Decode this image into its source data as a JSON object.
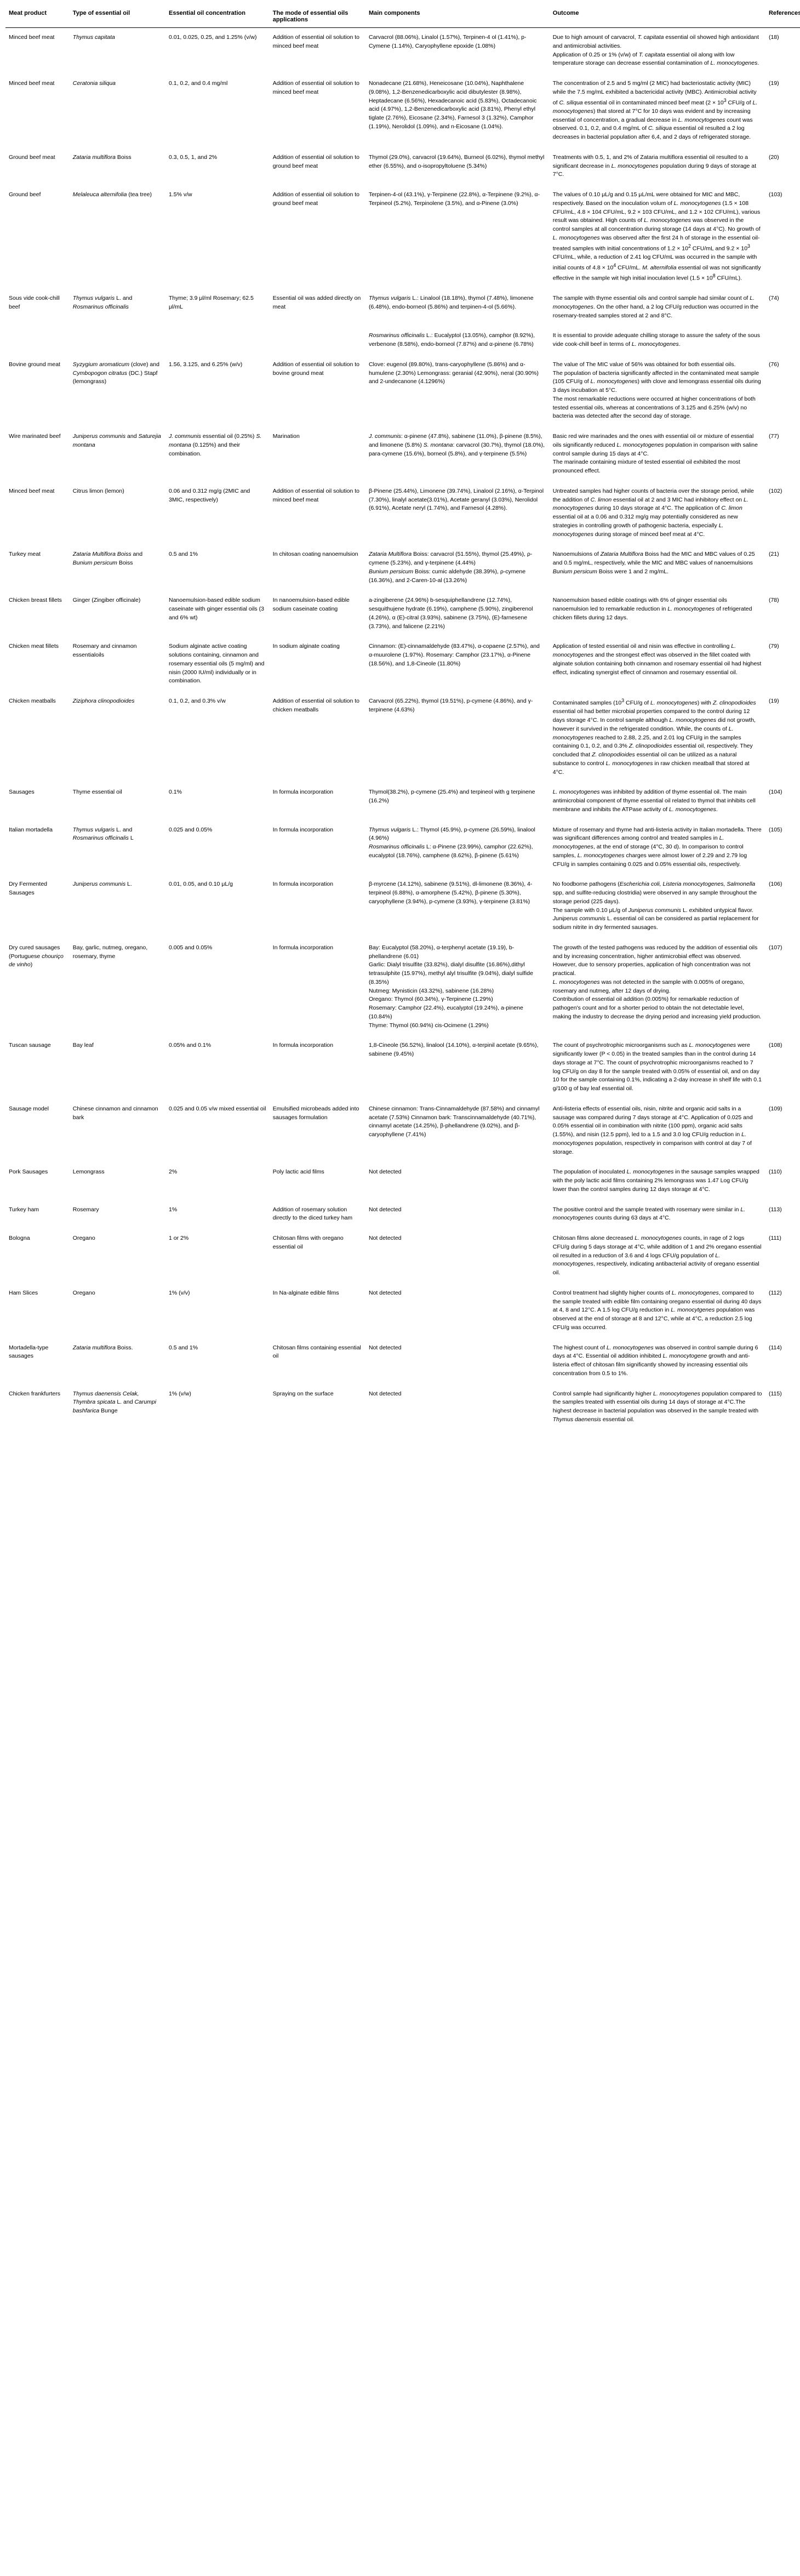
{
  "headers": {
    "meat": "Meat product",
    "type": "Type of essential oil",
    "conc": "Essential oil concentration",
    "mode": "The mode of essential oils applications",
    "main": "Main components",
    "outcome": "Outcome",
    "ref": "References"
  },
  "rows": [
    {
      "meat": "Minced beef meat",
      "type": "<em>Thymus capitata</em>",
      "conc": "0.01, 0.025, 0.25, and 1.25% (v/w)",
      "mode": "Addition of essential oil solution to minced beef meat",
      "main": "Carvacrol (88.06%), Linalol (1.57%), Terpinen-4 ol (1.41%), p-Cymene (1.14%), Caryophyllene epoxide (1.08%)",
      "outcome": "Due to high amount of carvacrol, <em>T. capitata</em> essential oil showed high antioxidant and antimicrobial activities.<br>Application of 0.25 or 1% (v/w) of <em>T. capitata</em> essential oil along with low temperature storage can decrease essential contamination of <em>L. monocytogenes</em>.",
      "ref": "(18)"
    },
    {
      "meat": "Minced beef meat",
      "type": "<em>Ceratonia siliqua</em>",
      "conc": "0.1, 0.2, and 0.4 mg/ml",
      "mode": "Addition of essential oil solution to minced beef meat",
      "main": "Nonadecane (21.68%), Heneicosane (10.04%), Naphthalene (9.08%), 1,2-Benzenedicarboxylic acid dibutylester (8.98%), Heptadecane (6.56%), Hexadecanoic acid (5.83%), Octadecanoic acid (4.97%), 1,2-Benzenedicarboxylic acid (3.81%), Phenyl ethyl tiglate (2.76%), Eicosane (2.34%), Farnesol 3 (1.32%), Camphor (1.19%), Nerolidol (1.09%), and n-Eicosane (1.04%).",
      "outcome": "The concentration of 2.5 and 5 mg/ml (2 MIC) had bacteriostatic activity (MIC) while the 7.5 mg/mL exhibited a bactericidal activity (MBC). Antimicrobial activity of <em>C. siliqua</em> essential oil in contaminated minced beef meat (2 × 10<sup>3</sup> CFU/g of <em>L. monocytogenes</em>) that stored at 7°C for 10 days was evident and by increasing essential of concentration, a gradual decrease in <em>L. monocytogenes</em> count was observed. 0.1, 0.2, and 0.4 mg/mL of <em>C. siliqua</em> essential oil resulted a 2 log decreases in bacterial population after 6,4, and 2 days of refrigerated storage.",
      "ref": "(19)"
    },
    {
      "meat": "Ground beef meat",
      "type": "<em>Zataria multiflora</em> Boiss",
      "conc": "0.3, 0.5, 1, and 2%",
      "mode": "Addition of essential oil solution to ground beef meat",
      "main": "Thymol (29.0%), carvacrol (19.64%), Burneol (6.02%), thymol methyl ether (6.55%), and o-isopropyltoluene (5.34%)",
      "outcome": "Treatments with 0.5, 1, and 2% of Zataria multiflora essential oil resulted to a significant decrease in <em>L. monocytogenes</em> population during 9 days of storage at 7°C.",
      "ref": "(20)"
    },
    {
      "meat": "Ground beef",
      "type": "<em>Melaleuca alternifolia</em> (tea tree)",
      "conc": "1.5% v/w",
      "mode": "Addition of essential oil solution to ground beef meat",
      "main": "Terpinen-4-ol (43.1%), γ-Terpinene (22.8%), α-Terpinene (9.2%), α-Terpineol (5.2%), Terpinolene (3.5%), and α-Pinene (3.0%)",
      "outcome": "The values of 0.10 μL/g and 0.15 μL/mL were obtained for MIC and MBC, respectively. Based on the inoculation volum of <em>L. monocytogenes</em> (1.5 × 108 CFU/mL, 4.8 × 104 CFU/mL, 9.2 × 103 CFU/mL, and 1.2 × 102 CFU/mL), various result was obtained. High counts of <em>L. monocytogenes</em> was observed in the control samples at all concentration during storage (14 days at 4°C). No growth of <em>L. monocytogenes</em> was observed after the first 24 h of storage in the essential oil- treated samples with initial concentrations of 1.2 × 10<sup>2</sup> CFU/mL and 9.2 × 10<sup>3</sup> CFU/mL, while, a reduction of 2.41 log CFU/mL was occurred in the sample with initial counts of 4.8 × 10<sup>4</sup> CFU/mL. <em>M. alternifolia</em> essential oil was not significantly effective in the sample wit high initial inoculation level (1.5 × 10<sup>8</sup> CFU/mL).",
      "ref": "(103)"
    },
    {
      "meat": "Sous vide cook-chill beef",
      "type": "<em>Thymus vulgaris</em> L. and <em>Rosmarinus officinalis</em>",
      "conc": "Thyme; 3.9 μl/ml Rosemary; 62.5 μl/mL",
      "mode": "Essential oil was added directly on meat",
      "main": "<em>Thymus vulgaris</em> L.: Linalool (18.18%), thymol (7.48%), limonene (6.48%), endo-borneol (5.86%) and terpinen-4-ol (5.66%).",
      "outcome": "The sample with thyme essential oils and control sample had similar count of <em>L. monocytogenes</em>. On the other hand, a 2 log CFU/g reduction was occurred in the rosemary-treated samples stored at 2 and 8°C.",
      "ref": "(74)"
    },
    {
      "meat": "",
      "type": "",
      "conc": "",
      "mode": "",
      "main": "<em>Rosmarinus officinalis</em> L.: Eucalyptol (13.05%), camphor (8.92%), verbenone (8.58%), endo-borneol (7.87%) and α-pinene (6.78%)",
      "outcome": "It is essential to provide adequate chilling storage to assure the safety of the sous vide cook-chill beef in terms of <em>L. monocytogenes</em>.",
      "ref": ""
    },
    {
      "meat": "Bovine ground meat",
      "type": "<em>Syzygium aromaticum</em> (clove) and <em>Cymbopogon citratus</em> (DC.) Stapf (lemongrass)",
      "conc": "1.56, 3.125, and 6.25% (w/v)",
      "mode": "Addition of essential oil solution to bovine ground meat",
      "main": "Clove: eugenol (89.80%), trans-caryophyllene (5.86%) and α-humulene (2.30%) Lemongrass: geranial (42.90%), neral (30.90%) and 2-undecanone (4.1296%)",
      "outcome": "The value of The MIC value of 56% was obtained for both essential oils.<br>The population of bacteria significantly affected in the contaminated meat sample (105 CFU/g of <em>L. monocytogenes</em>) with clove and lemongrass essential oils during 3 days incubation at 5°C.<br>The most remarkable reductions were occurred at higher concentrations of both tested essential oils, whereas at concentrations of 3.125 and 6.25% (w/v) no bacteria was detected after the second day of storage.",
      "ref": "(76)"
    },
    {
      "meat": "Wire marinated beef",
      "type": "<em>Juniperus communis</em> and <em>Saturejia montana</em>",
      "conc": "<em>J. communis</em> essential oil (0.25%) <em>S. montana</em> (0.125%) and their combination.",
      "mode": "Marination",
      "main": "<em>J. communis</em>: α-pinene (47.8%), sabinene (11.0%), β-pinene (8.5%), and limonene (5.8%) <em>S. montana</em>: carvacrol (30.7%), thymol (18.0%), para-cymene (15.6%), borneol (5.8%), and γ-terpinene (5.5%)",
      "outcome": "Basic red wire marinades and the ones with essential oil or mixture of essential oils significantly reduced <em>L. monocytogenes</em> population in comparison with saline control sample during 15 days at 4°C.<br>The marinade containing mixture of tested essential oil exhibited the most pronounced effect.",
      "ref": "(77)"
    },
    {
      "meat": "Minced beef meat",
      "type": "Citrus limon (lemon)",
      "conc": "0.06 and 0.312 mg/g (2MIC and 3MIC, respectively)",
      "mode": "Addition of essential oil solution to minced beef meat",
      "main": "β-Pinene (25.44%), Limonene (39.74%), Linalool (2.16%), α-Terpinol (7.30%), linalyl acetate(3.01%), Acetate geranyl (3.03%), Nerolidol (6.91%), Acetate neryl (1.74%), and Farnesol (4.28%).",
      "outcome": "Untreated samples had higher counts of bacteria over the storage period, while the addition of <em>C. limon</em> essential oil at 2 and 3 MIC had inhibitory effect on <em>L. monocytogenes</em> during 10 days storage at 4°C. The application of <em>C. limon</em> essential oil at a 0.06 and 0.312 mg/g may potentially considered as new strategies in controlling growth of pathogenic bacteria, especially <em>L. monocytogenes</em> during storage of minced beef meat at 4°C.",
      "ref": "(102)"
    },
    {
      "meat": "Turkey meat",
      "type": "<em>Zataria Multiflora Boiss</em> and <em>Bunium persicum</em> Boiss",
      "conc": "0.5 and 1%",
      "mode": "In chitosan coating nanoemulsion",
      "main": "<em>Zataria Multiflora</em> Boiss: carvacrol (51.55%), thymol (25.49%), ρ-cymene (5.23%), and γ-terpinene (4.44%)<br><em>Bunium persicum</em> Boiss: cumic aldehyde (38.39%), ρ-cymene (16.36%), and 2-Caren-10-al (13.26%)",
      "outcome": "Nanoemulsions of <em>Zataria Multiflora</em> Boiss had the MIC and MBC values of 0.25 and 0.5 mg/mL, respectively, while the MIC and MBC values of nanoemulsions <em>Bunium persicum</em> Boiss were 1 and 2 mg/mL.",
      "ref": "(21)"
    },
    {
      "meat": "Chicken breast fillets",
      "type": "Ginger (Zingiber officinale)",
      "conc": "Nanoemulsion-based edible sodium caseinate with ginger essential oils (3 and 6% wt)",
      "mode": "In nanoemulsion-based edible sodium caseinate coating",
      "main": "a-zingiberene (24.96%) b-sesquiphellandrene (12.74%), sesquithujene hydrate (6.19%), camphene (5.90%), zingiberenol (4.26%), α (E)-citral (3.93%), sabinene (3.75%), (E)-farnesene (3.73%), and falicene (2.21%)",
      "outcome": "Nanoemulsion based edible coatings with 6% of ginger essential oils nanoemulsion led to remarkable reduction in <em>L. monocytogenes</em> of refrigerated chicken fillets during 12 days.",
      "ref": "(78)"
    },
    {
      "meat": "Chicken meat fillets",
      "type": "Rosemary and cinnamon essentialoils",
      "conc": "Sodium alginate active coating solutions containing, cinnamon and rosemary essential oils (5 mg/ml) and nisin (2000 IU/ml) individually or in combination.",
      "mode": "In sodium alginate coating",
      "main": "Cinnamon: (E)-cinnamaldehyde (83.47%), α-copaene (2.57%), and α-muurolene (1.97%). Rosemary: Camphor (23.17%), α-Pinene (18.56%), and 1,8-Cineole (11.80%)",
      "outcome": "Application of tested essential oil and nisin was effective in controlling <em>L. monocytogenes</em> and the strongest effect was observed in the fillet coated with alginate solution containing both cinnamon and rosemary essential oil had highest effect, indicating synergist effect of cinnamon and rosemary essential oil.",
      "ref": "(79)"
    },
    {
      "meat": "Chicken meatballs",
      "type": "<em>Ziziphora clinopodioides</em>",
      "conc": "0.1, 0.2, and 0.3% v/w",
      "mode": "Addition of essential oil solution to chicken meatballs",
      "main": "Carvacrol (65.22%), thymol (19.51%), p-cymene (4.86%), and γ-terpinene (4.63%)",
      "outcome": "Contaminated samples (10<sup>3</sup> CFU/g of <em>L. monocytogenes</em>) with <em>Z. clinopodioides</em> essential oil had better microbial properties compared to the control during 12 days storage 4°C. In control sample although <em>L. monocytogenes</em> did not growth, however it survived in the refrigerated condition. While, the counts of <em>L. monocytogenes</em> reached to 2.88, 2.25, and 2.01 log CFU/g in the samples containing 0.1, 0.2, and 0.3% <em>Z. clinopodioides</em> essential oil, respectively. They concluded that <em>Z. clinopodioides</em> essential oil can be utilized as a natural substance to control <em>L. monocytogenes</em> in raw chicken meatball that stored at 4°C.",
      "ref": "(19)"
    },
    {
      "meat": "Sausages",
      "type": "Thyme essential oil",
      "conc": "0.1%",
      "mode": "In formula incorporation",
      "main": "Thymol(38.2%), p-cymene (25.4%) and terpineol with g terpinene (16.2%)",
      "outcome": "<em>L. monocytogenes</em> was inhibited by addition of thyme essential oil. The main antimicrobial component of thyme essential oil related to thymol that inhibits cell membrane and inhibits the ATPase activity of <em>L. monocytogenes</em>.",
      "ref": "(104)"
    },
    {
      "meat": "Italian mortadella",
      "type": "<em>Thymus vulgaris</em> L. and <em>Rosmarinus officinalis</em> L",
      "conc": "0.025 and 0.05%",
      "mode": "In formula incorporation",
      "main": "<em>Thymus vulgaris</em> L.: Thymol (45.9%), p-cymene (26.59%), linalool (4.96%)<br><em>Rosmarinus officinalis</em> L: α-Pinene (23.99%), camphor (22.62%), eucalyptol (18.76%), camphene (8.62%), β-pinene (5.61%)",
      "outcome": "Mixture of rosemary and thyme had anti-listeria activity in Italian mortadella. There was significant differences among control and treated samples in <em>L. monocytogenes</em>, at the end of storage (4°C, 30 d). In comparison to control samples, <em>L. monocytogenes</em> charges were almost lower of 2.29 and 2.79 log CFU/g in samples containing 0.025 and 0.05% essential oils, respectively.",
      "ref": "(105)"
    },
    {
      "meat": "Dry Fermented Sausages",
      "type": "<em>Juniperus communis</em> L.",
      "conc": "0.01, 0.05, and 0.10 μL/g",
      "mode": "In formula incorporation",
      "main": "β-myrcene (14.12%), sabinene (9.51%), dl-limonene (8.36%), 4-terpineol (6.88%), α-amorphene (5.42%), β-pinene (5.30%), caryophyllene (3.94%), p-cymene (3.93%), γ-terpinene (3.81%)",
      "outcome": "No foodborne pathogens (<em>Escherichia coli, Listeria monocytogenes, Salmonella</em> spp, and sulfite-reducing clostridia) were observed in any sample throughout the storage period (225 days).<br>The sample with 0.10 μL/g of <em>Juniperus communis</em> L. exhibited untypical flavor. <em>Juniperus communis</em> L. essential oil can be considered as partial replacement for sodium nitrite in dry fermented sausages.",
      "ref": "(106)"
    },
    {
      "meat": "Dry cured sausages (Portuguese <em>chouriço de vinho</em>)",
      "type": "Bay, garlic, nutmeg, oregano, rosemary, thyme",
      "conc": "0.005 and 0.05%",
      "mode": "In formula incorporation",
      "main": "Bay: Eucalyptol (58.20%), α-terphenyl acetate (19.19), b-phellandrene (6.01)<br>Garlic: Dialyl trisulfite (33.82%), dialyl disulfite (16.86%),dithyl tetrasulphite (15.97%), methyl alyl trisulfite (9.04%), dialyl sulfide (8.35%)<br>Nutmeg: Mynisticin (43.32%), sabinene (16.28%)<br>Oregano: Thymol (60.34%), γ-Terpinene (1.29%)<br>Rosemary: Camphor (22.4%), eucalyptol (19.24%), a-pinene (10.84%)<br>Thyme: Thymol (60.94%) cis-Ocimene (1.29%)",
      "outcome": "The growth of the tested pathogens was reduced by the addition of essential oils and by increasing concentration, higher antimicrobial effect was observed. However, due to sensory properties, application of high concentration was not practical.<br><em>L. monocytogenes</em> was not detected in the sample with 0.005% of oregano, rosemary and nutmeg, after 12 days of drying.<br>Contribution of essential oil addition (0.005%) for remarkable reduction of pathogen's count and for a shorter period to obtain the not detectable level, making the industry to decrease the drying period and increasing yield production.",
      "ref": "(107)"
    },
    {
      "meat": "Tuscan sausage",
      "type": "Bay leaf",
      "conc": "0.05% and 0.1%",
      "mode": "In formula incorporation",
      "main": "1,8-Cineole (56.52%), linalool (14.10%), α-terpinil acetate (9.65%), sabinene (9.45%)",
      "outcome": "The count of psychrotrophic microorganisms such as <em>L. monocytogenes</em> were significantly lower (P < 0.05) in the treated samples than in the control during 14 days storage at 7°C. The count of psychrotrophic microorganisms reached to 7 log CFU/g on day 8 for the sample treated with 0.05% of essential oil, and on day 10 for the sample containing 0.1%, indicating a 2-day increase in shelf life with 0.1 g/100 g of bay leaf essential oil.",
      "ref": "(108)"
    },
    {
      "meat": "Sausage model",
      "type": "Chinese cinnamon and cinnamon bark",
      "conc": "0.025 and 0.05 v/w mixed essential oil",
      "mode": "Emulsified microbeads added into sausages formulation",
      "main": "Chinese cinnamon: Trans-Cinnamaldehyde (87.58%) and cinnamyl acetate (7.53%) Cinnamon bark: Transcinnamaldehyde (40.71%), cinnamyl acetate (14.25%), β-phellandrene (9.02%), and β-caryophyllene (7.41%)",
      "outcome": "Anti-listeria effects of essential oils, nisin, nitrite and organic acid salts in a sausage was compared during 7 days storage at 4°C. Application of 0.025 and 0.05% essential oil in combination with nitrite (100 ppm), organic acid salts (1.55%), and nisin (12.5 ppm), led to a 1.5 and 3.0 log CFU/g reduction in <em>L. monocytogenes</em> population, respectively in comparison with control at day 7 of storage.",
      "ref": "(109)"
    },
    {
      "meat": "Pork Sausages",
      "type": "Lemongrass",
      "conc": "2%",
      "mode": "Poly lactic acid films",
      "main": "Not detected",
      "outcome": "The population of inoculated <em>L. monocytogenes</em> in the sausage samples wrapped with the poly lactic acid films containing 2% lemongrass was 1.47 Log CFU/g lower than the control samples during 12 days storage at 4°C.",
      "ref": "(110)"
    },
    {
      "meat": "Turkey ham",
      "type": "Rosemary",
      "conc": "1%",
      "mode": "Addition of rosemary solution directly to the diced turkey ham",
      "main": "Not detected",
      "outcome": "The positive control and the sample treated with rosemary were similar in <em>L. monocytogenes</em> counts during 63 days at 4°C.",
      "ref": "(113)"
    },
    {
      "meat": "Bologna",
      "type": "Oregano",
      "conc": "1 or 2%",
      "mode": "Chitosan films with oregano essential oil",
      "main": "Not detected",
      "outcome": "Chitosan films alone decreased <em>L. monocytogenes</em> counts, in rage of 2 logs CFU/g during 5 days storage at 4°C, while addition of 1 and 2% oregano essential oil resulted in a reduction of 3.6 and 4 logs CFU/g population of <em>L. monocytogenes</em>, respectively, indicating antibacterial activity of oregano essential oil.",
      "ref": "(111)"
    },
    {
      "meat": "Ham Slices",
      "type": "Oregano",
      "conc": "1% (v/v)",
      "mode": "In Na-alginate edible films",
      "main": "Not detected",
      "outcome": "Control treatment had slightly higher counts of <em>L. monocytogenes</em>, compared to the sample treated with edible film containing oregano essential oil during 40 days at 4, 8 and 12°C. A 1.5 log CFU/g reduction in <em>L. monocytgenes</em> population was observed at the end of storage at 8 and 12°C, while at 4°C, a reduction 2.5 log CFU/g was occurred.",
      "ref": "(112)"
    },
    {
      "meat": "Mortadella-type sausages",
      "type": "<em>Zataria multiflora</em> Boiss.",
      "conc": "0.5 and 1%",
      "mode": "Chitosan films containing essential oil",
      "main": "Not detected",
      "outcome": "The highest count of <em>L. monocytogenes</em> was observed in control sample during 6 days at 4°C. Essential oil addition inhibited <em>L. monocytogene</em> growth and anti-listeria effect of chitosan film significantly showed by increasing essential oils concentration from 0.5 to 1%.",
      "ref": "(114)"
    },
    {
      "meat": "Chicken frankfurters",
      "type": "<em>Thymus daenensis Celak, Thymbra spicata</em> L. and <em>Carumpi bashfarica</em> Bunge",
      "conc": "1% (v/w)",
      "mode": "Spraying on the surface",
      "main": "Not detected",
      "outcome": "Control sample had significantly higher <em>L. monocytogenes</em> population compared to the samples treated with essential oils during 14 days of storage at 4°C.The highest decrease in bacterial population was observed in the sample treated with <em>Thymus daenensis</em> essential oil.",
      "ref": "(115)"
    }
  ]
}
